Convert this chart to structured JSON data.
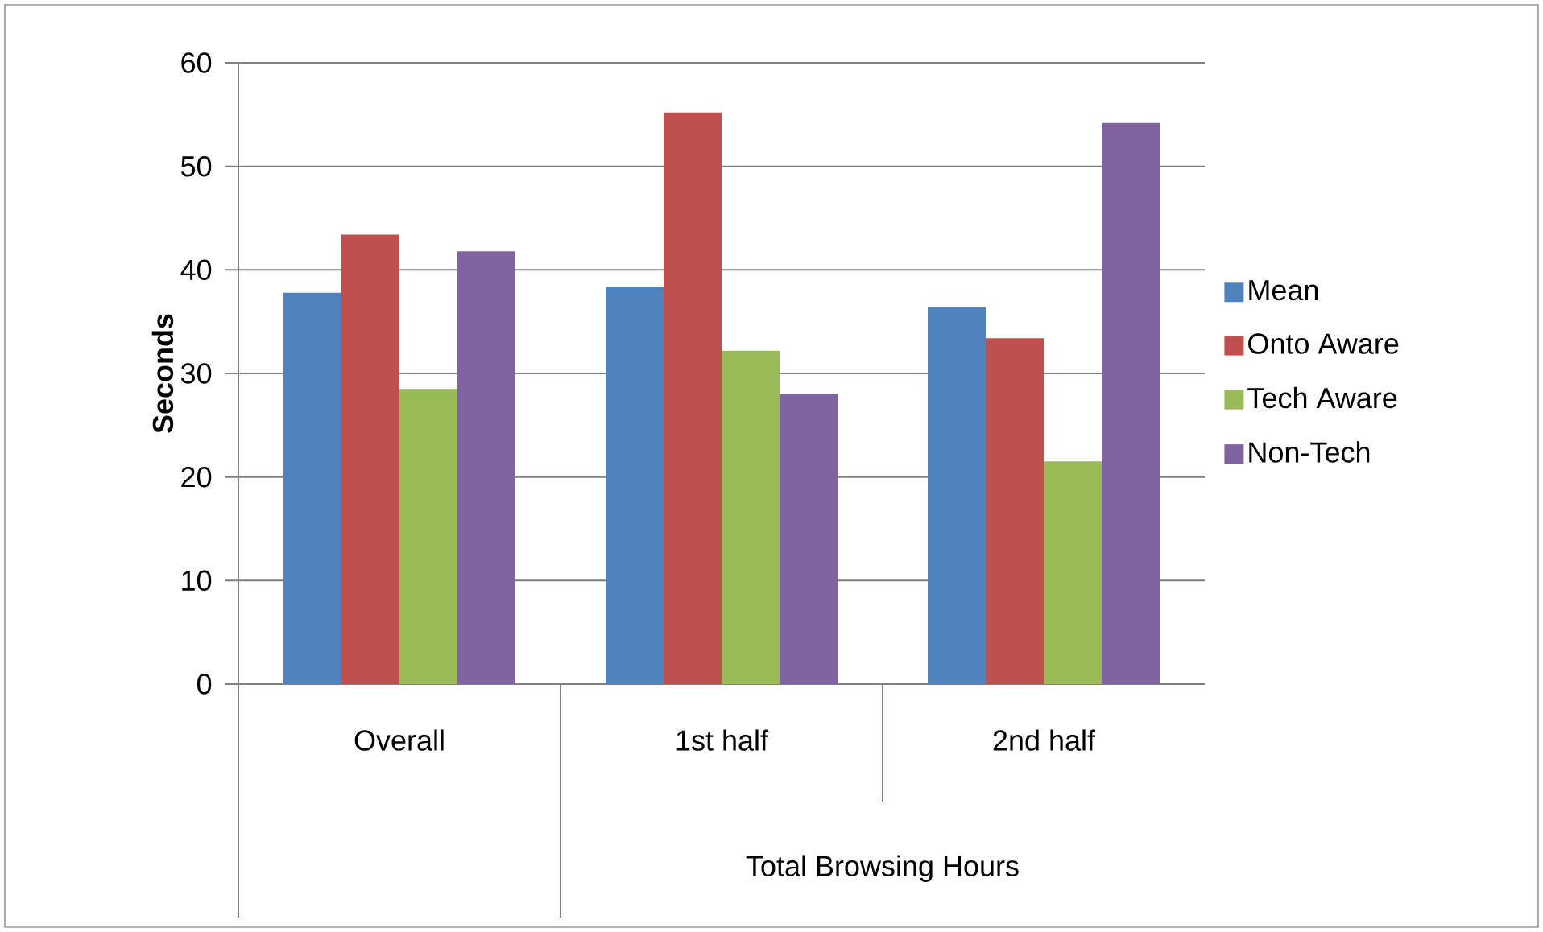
{
  "chart_data": {
    "type": "bar",
    "ylabel": "Seconds",
    "xlabel": "Total Browsing Hours",
    "categories": [
      "Overall",
      "1st half",
      "2nd half"
    ],
    "series": [
      {
        "name": "Mean",
        "color": "#4f81bd",
        "values": [
          37.8,
          38.4,
          36.4
        ]
      },
      {
        "name": "Onto Aware",
        "color": "#c0504d",
        "values": [
          43.4,
          55.2,
          33.4
        ]
      },
      {
        "name": "Tech Aware",
        "color": "#9bbb59",
        "values": [
          28.5,
          32.2,
          21.5
        ]
      },
      {
        "name": "Non-Tech",
        "color": "#8064a2",
        "values": [
          41.8,
          28.0,
          54.2
        ]
      }
    ],
    "ylim": [
      0,
      60
    ],
    "yticks": [
      0,
      10,
      20,
      30,
      40,
      50,
      60
    ],
    "grid": "y",
    "legend": "right"
  }
}
